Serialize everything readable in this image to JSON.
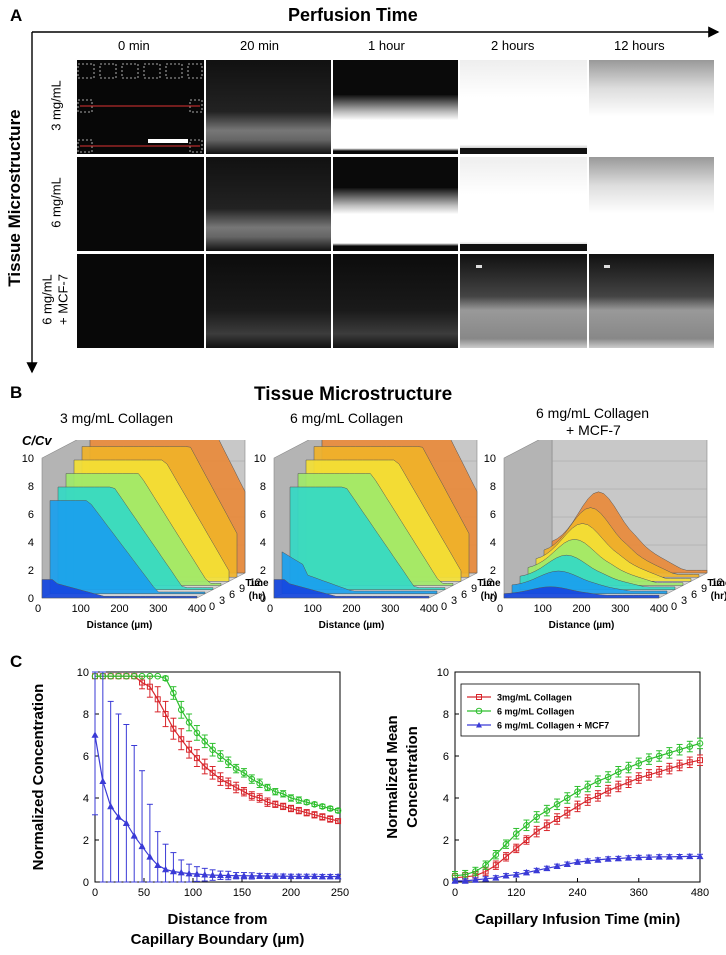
{
  "panel_a": {
    "letter": "A",
    "top_title": "Perfusion Time",
    "side_title": "Tissue Microstructure",
    "time_labels": [
      "0 min",
      "20 min",
      "1 hour",
      "2 hours",
      "12 hours"
    ],
    "row_labels": [
      [
        "3 mg/mL"
      ],
      [
        "6 mg/mL"
      ],
      [
        "6 mg/mL",
        "+ MCF-7"
      ]
    ]
  },
  "panel_b": {
    "letter": "B",
    "title": "Tissue Microstructure",
    "chart_titles": [
      [
        "3 mg/mL Collagen"
      ],
      [
        "6 mg/mL Collagen"
      ],
      [
        "6 mg/mL Collagen",
        "+ MCF-7"
      ]
    ],
    "z_axis_label": "C/Cv",
    "z_ticks": [
      "0",
      "2",
      "4",
      "6",
      "8",
      "10"
    ],
    "x_ticks": [
      "0",
      "100",
      "200",
      "300",
      "400"
    ],
    "x_label": "Distance (µm)",
    "t_ticks": [
      "0",
      "3",
      "6",
      "9",
      "12"
    ],
    "t_label": [
      "Time",
      "(hr)"
    ]
  },
  "colors": {
    "red": "#d8262c",
    "green": "#2dbf2d",
    "blue": "#3a3ad6",
    "surface": [
      "#1546e0",
      "#1aa0ee",
      "#34d9c4",
      "#9fe96a",
      "#f3df35",
      "#f0b229",
      "#e88a3b"
    ]
  },
  "chart_data": [
    {
      "type": "line",
      "title": "",
      "ylabel": [
        "Normalized Concentration"
      ],
      "xlabel": [
        "Distance from",
        "Capillary Boundary (µm)"
      ],
      "xlim": [
        0,
        250
      ],
      "ylim": [
        0,
        10
      ],
      "x_ticks": [
        0,
        50,
        100,
        150,
        200,
        250
      ],
      "y_ticks": [
        0,
        2,
        4,
        6,
        8,
        10
      ],
      "series": [
        {
          "name": "3mg/mL Collagen",
          "color": "#d8262c",
          "marker": "square",
          "x": [
            0,
            8,
            16,
            24,
            32,
            40,
            48,
            56,
            64,
            72,
            80,
            88,
            96,
            104,
            112,
            120,
            128,
            136,
            144,
            152,
            160,
            168,
            176,
            184,
            192,
            200,
            208,
            216,
            224,
            232,
            240,
            248
          ],
          "values": [
            9.8,
            9.8,
            9.8,
            9.8,
            9.8,
            9.8,
            9.5,
            9.3,
            8.7,
            8.0,
            7.3,
            6.8,
            6.3,
            5.9,
            5.5,
            5.2,
            4.9,
            4.7,
            4.5,
            4.3,
            4.1,
            4.0,
            3.8,
            3.7,
            3.6,
            3.5,
            3.4,
            3.3,
            3.2,
            3.1,
            3.0,
            2.9
          ],
          "errors": [
            0,
            0,
            0,
            0,
            0,
            0,
            0.3,
            0.5,
            0.6,
            0.6,
            0.5,
            0.5,
            0.4,
            0.4,
            0.35,
            0.3,
            0.3,
            0.25,
            0.25,
            0.2,
            0.2,
            0.2,
            0.2,
            0.15,
            0.15,
            0.15,
            0.15,
            0.15,
            0.15,
            0.15,
            0.15,
            0.1
          ]
        },
        {
          "name": "6 mg/mL Collagen",
          "color": "#2dbf2d",
          "marker": "circle",
          "x": [
            0,
            8,
            16,
            24,
            32,
            40,
            48,
            56,
            64,
            72,
            80,
            88,
            96,
            104,
            112,
            120,
            128,
            136,
            144,
            152,
            160,
            168,
            176,
            184,
            192,
            200,
            208,
            216,
            224,
            232,
            240,
            248
          ],
          "values": [
            9.8,
            9.8,
            9.8,
            9.8,
            9.8,
            9.8,
            9.8,
            9.8,
            9.8,
            9.7,
            9.0,
            8.2,
            7.6,
            7.1,
            6.7,
            6.3,
            6.0,
            5.7,
            5.4,
            5.2,
            4.9,
            4.7,
            4.5,
            4.3,
            4.2,
            4.0,
            3.9,
            3.8,
            3.7,
            3.6,
            3.5,
            3.4
          ],
          "errors": [
            0,
            0,
            0,
            0,
            0,
            0,
            0,
            0,
            0,
            0.1,
            0.3,
            0.4,
            0.4,
            0.35,
            0.3,
            0.3,
            0.25,
            0.25,
            0.2,
            0.2,
            0.2,
            0.2,
            0.15,
            0.15,
            0.15,
            0.15,
            0.15,
            0.1,
            0.1,
            0.1,
            0.1,
            0.1
          ]
        },
        {
          "name": "6 mg/mL Collagen + MCF7",
          "color": "#3a3ad6",
          "marker": "triangle",
          "x": [
            0,
            8,
            16,
            24,
            32,
            40,
            48,
            56,
            64,
            72,
            80,
            88,
            96,
            104,
            112,
            120,
            128,
            136,
            144,
            152,
            160,
            168,
            176,
            184,
            192,
            200,
            208,
            216,
            224,
            232,
            240,
            248
          ],
          "values": [
            7.0,
            4.8,
            3.6,
            3.1,
            2.8,
            2.2,
            1.7,
            1.2,
            0.8,
            0.6,
            0.5,
            0.45,
            0.4,
            0.38,
            0.35,
            0.33,
            0.32,
            0.31,
            0.3,
            0.3,
            0.29,
            0.29,
            0.28,
            0.28,
            0.28,
            0.27,
            0.27,
            0.27,
            0.27,
            0.26,
            0.26,
            0.26
          ],
          "errors": [
            3.8,
            5.2,
            5.0,
            4.9,
            4.7,
            4.3,
            3.6,
            2.5,
            1.6,
            1.2,
            0.9,
            0.6,
            0.45,
            0.35,
            0.3,
            0.25,
            0.2,
            0.2,
            0.15,
            0.15,
            0.15,
            0.12,
            0.12,
            0.1,
            0.1,
            0.1,
            0.1,
            0.1,
            0.1,
            0.1,
            0.1,
            0.1
          ]
        }
      ]
    },
    {
      "type": "line",
      "title": "",
      "ylabel": [
        "Normalized Mean",
        "Concentration"
      ],
      "xlabel": [
        "Capillary Infusion Time (min)"
      ],
      "xlim": [
        0,
        480
      ],
      "ylim": [
        0,
        10
      ],
      "x_ticks": [
        0,
        120,
        240,
        360,
        480
      ],
      "y_ticks": [
        0,
        2,
        4,
        6,
        8,
        10
      ],
      "legend": "top-left",
      "series": [
        {
          "name": "3mg/mL Collagen",
          "color": "#d8262c",
          "marker": "square",
          "x": [
            0,
            20,
            40,
            60,
            80,
            100,
            120,
            140,
            160,
            180,
            200,
            220,
            240,
            260,
            280,
            300,
            320,
            340,
            360,
            380,
            400,
            420,
            440,
            460,
            480
          ],
          "values": [
            0.2,
            0.25,
            0.3,
            0.5,
            0.8,
            1.2,
            1.6,
            2.0,
            2.4,
            2.7,
            3.0,
            3.3,
            3.6,
            3.9,
            4.1,
            4.35,
            4.55,
            4.75,
            4.95,
            5.1,
            5.25,
            5.4,
            5.55,
            5.7,
            5.8
          ],
          "errors": [
            0.2,
            0.2,
            0.2,
            0.2,
            0.2,
            0.2,
            0.2,
            0.2,
            0.25,
            0.25,
            0.25,
            0.25,
            0.25,
            0.25,
            0.25,
            0.25,
            0.25,
            0.25,
            0.25,
            0.25,
            0.25,
            0.25,
            0.25,
            0.25,
            0.25
          ]
        },
        {
          "name": "6 mg/mL Collagen",
          "color": "#2dbf2d",
          "marker": "circle",
          "x": [
            0,
            20,
            40,
            60,
            80,
            100,
            120,
            140,
            160,
            180,
            200,
            220,
            240,
            260,
            280,
            300,
            320,
            340,
            360,
            380,
            400,
            420,
            440,
            460,
            480
          ],
          "values": [
            0.3,
            0.35,
            0.5,
            0.8,
            1.3,
            1.8,
            2.3,
            2.7,
            3.1,
            3.4,
            3.7,
            4.0,
            4.3,
            4.55,
            4.8,
            5.0,
            5.25,
            5.45,
            5.65,
            5.85,
            6.0,
            6.15,
            6.3,
            6.45,
            6.6
          ],
          "errors": [
            0.2,
            0.2,
            0.2,
            0.2,
            0.2,
            0.2,
            0.25,
            0.25,
            0.25,
            0.25,
            0.25,
            0.25,
            0.25,
            0.25,
            0.25,
            0.25,
            0.25,
            0.25,
            0.25,
            0.25,
            0.25,
            0.25,
            0.25,
            0.25,
            0.25
          ]
        },
        {
          "name": "6 mg/mL Collagen + MCF7",
          "color": "#3a3ad6",
          "marker": "triangle",
          "x": [
            0,
            20,
            40,
            60,
            80,
            100,
            120,
            140,
            160,
            180,
            200,
            220,
            240,
            260,
            280,
            300,
            320,
            340,
            360,
            380,
            400,
            420,
            440,
            460,
            480
          ],
          "values": [
            0.05,
            0.05,
            0.1,
            0.15,
            0.2,
            0.3,
            0.35,
            0.45,
            0.55,
            0.65,
            0.75,
            0.85,
            0.95,
            1.0,
            1.05,
            1.1,
            1.12,
            1.15,
            1.17,
            1.18,
            1.2,
            1.2,
            1.21,
            1.22,
            1.22
          ],
          "errors": [
            0.1,
            0.1,
            0.1,
            0.1,
            0.1,
            0.1,
            0.1,
            0.1,
            0.1,
            0.1,
            0.1,
            0.1,
            0.1,
            0.1,
            0.1,
            0.1,
            0.1,
            0.1,
            0.1,
            0.1,
            0.1,
            0.1,
            0.1,
            0.1,
            0.1
          ]
        }
      ]
    }
  ],
  "panel_c": {
    "letter": "C"
  }
}
